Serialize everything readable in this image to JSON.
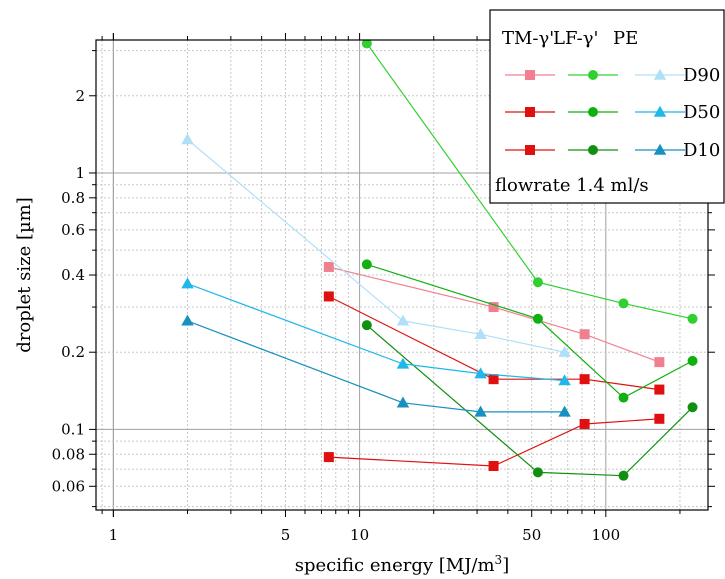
{
  "chart_data": {
    "type": "scatter",
    "xlabel": "specific energy [MJ/m",
    "xlabel_sup": "3",
    "xlabel_end": "]",
    "ylabel": "droplet size [µm]",
    "x_scale": "log",
    "y_scale": "log",
    "xlim": [
      0.85,
      260
    ],
    "ylim": [
      0.0485,
      3.3
    ],
    "x_ticks": [
      {
        "value": 1,
        "label": "1"
      },
      {
        "value": 5,
        "label": "5"
      },
      {
        "value": 10,
        "label": "10"
      },
      {
        "value": 50,
        "label": "50"
      },
      {
        "value": 100,
        "label": "100"
      }
    ],
    "y_ticks": [
      {
        "value": 0.06,
        "label": "0.06"
      },
      {
        "value": 0.08,
        "label": "0.08"
      },
      {
        "value": 0.1,
        "label": "0.1"
      },
      {
        "value": 0.2,
        "label": "0.2"
      },
      {
        "value": 0.4,
        "label": "0.4"
      },
      {
        "value": 0.6,
        "label": "0.6"
      },
      {
        "value": 0.8,
        "label": "0.8"
      },
      {
        "value": 1,
        "label": "1"
      },
      {
        "value": 2,
        "label": "2"
      }
    ],
    "grid": true,
    "series": [
      {
        "name": "TM-γ' D90",
        "color": "#f08090",
        "marker": "square",
        "x": [
          7.5,
          35,
          82,
          165
        ],
        "y": [
          0.43,
          0.3,
          0.235,
          0.183
        ]
      },
      {
        "name": "TM-γ' D50",
        "color": "#e01010",
        "marker": "square",
        "x": [
          7.5,
          35,
          82,
          165
        ],
        "y": [
          0.33,
          0.157,
          0.157,
          0.143
        ]
      },
      {
        "name": "TM-γ' D10",
        "color": "#e01010",
        "marker": "square",
        "x": [
          7.5,
          35,
          82,
          165
        ],
        "y": [
          0.078,
          0.072,
          0.105,
          0.11
        ]
      },
      {
        "name": "LF-γ' D90",
        "color": "#30d030",
        "marker": "circle",
        "x": [
          10.7,
          53,
          118,
          225
        ],
        "y": [
          3.2,
          0.375,
          0.31,
          0.27
        ]
      },
      {
        "name": "LF-γ' D50",
        "color": "#10b010",
        "marker": "circle",
        "x": [
          10.7,
          53,
          118,
          225
        ],
        "y": [
          0.44,
          0.27,
          0.133,
          0.185
        ]
      },
      {
        "name": "LF-γ' D10",
        "color": "#109010",
        "marker": "circle",
        "x": [
          10.7,
          53,
          118,
          225
        ],
        "y": [
          0.255,
          0.068,
          0.066,
          0.122
        ]
      },
      {
        "name": "PE D90",
        "color": "#b0e0f8",
        "marker": "triangle",
        "x": [
          2,
          15,
          31,
          68
        ],
        "y": [
          1.35,
          0.265,
          0.235,
          0.2
        ]
      },
      {
        "name": "PE D50",
        "color": "#20b8e8",
        "marker": "triangle",
        "x": [
          2,
          15,
          31,
          68
        ],
        "y": [
          0.37,
          0.18,
          0.165,
          0.155
        ]
      },
      {
        "name": "PE D10",
        "color": "#1890c0",
        "marker": "triangle",
        "x": [
          2,
          15,
          31,
          68
        ],
        "y": [
          0.265,
          0.127,
          0.117,
          0.117
        ]
      }
    ],
    "legend": {
      "placement": "top-right",
      "headers": [
        "TM-γ'",
        "LF-γ'",
        "PE"
      ],
      "rows": [
        "D90",
        "D50",
        "D10"
      ],
      "note": "flowrate 1.4 ml/s"
    }
  }
}
